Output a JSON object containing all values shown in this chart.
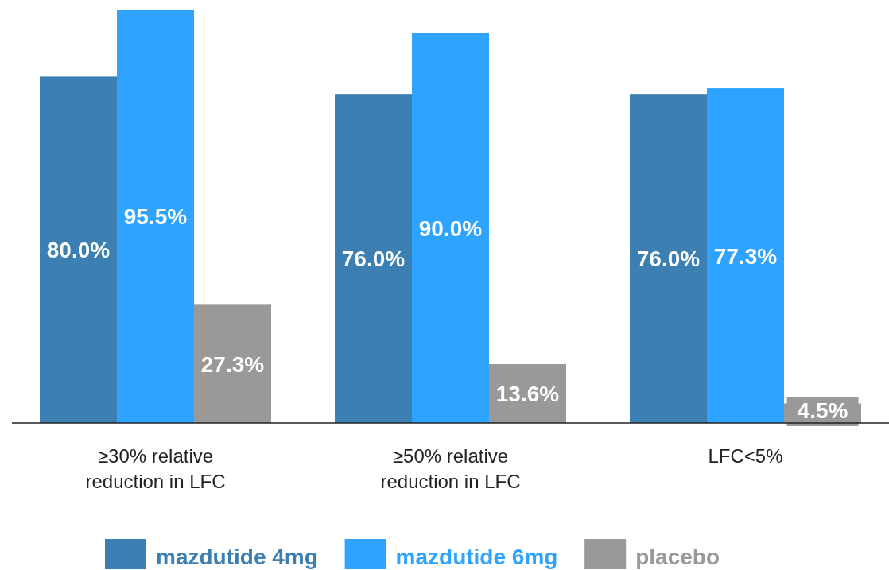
{
  "chart_data": {
    "type": "bar",
    "categories": [
      "≥30% relative reduction in LFC",
      "≥50% relative reduction in LFC",
      "LFC<5%"
    ],
    "series": [
      {
        "name": "mazdutide 4mg",
        "color": "#3c7fb2",
        "values": [
          80.0,
          76.0,
          76.0
        ],
        "value_labels": [
          "80.0%",
          "76.0%",
          "76.0%"
        ]
      },
      {
        "name": "mazdutide 6mg",
        "color": "#2ea3ff",
        "values": [
          95.5,
          90.0,
          77.3
        ],
        "value_labels": [
          "95.5%",
          "90.0%",
          "77.3%"
        ]
      },
      {
        "name": "placebo",
        "color": "#999999",
        "values": [
          27.3,
          13.6,
          4.5
        ],
        "value_labels": [
          "27.3%",
          "13.6%",
          "4.5%"
        ]
      }
    ],
    "legend": "bottom"
  }
}
